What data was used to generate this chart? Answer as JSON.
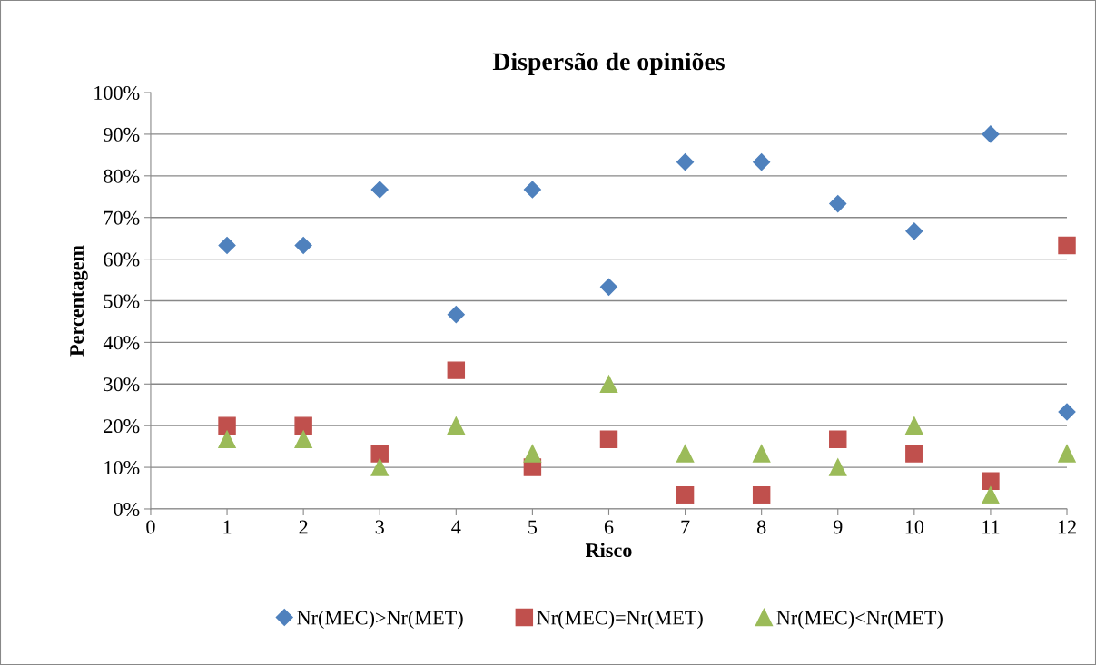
{
  "chart_data": {
    "type": "scatter",
    "title": "Dispersão de opiniões",
    "xlabel": "Risco",
    "ylabel": "Percentagem",
    "x": [
      1,
      2,
      3,
      4,
      5,
      6,
      7,
      8,
      9,
      10,
      11,
      12
    ],
    "series": [
      {
        "name": "Nr(MEC)>Nr(MET)",
        "color": "#4f81bd",
        "marker": "diamond",
        "values": [
          63.3,
          63.3,
          76.7,
          46.7,
          76.7,
          53.3,
          83.3,
          83.3,
          73.3,
          66.7,
          90,
          23.3
        ]
      },
      {
        "name": "Nr(MEC)=Nr(MET)",
        "color": "#c0504d",
        "marker": "square",
        "values": [
          20,
          20,
          13.3,
          33.3,
          10,
          16.7,
          3.3,
          3.3,
          16.7,
          13.3,
          6.7,
          63.3
        ]
      },
      {
        "name": "Nr(MEC)<Nr(MET)",
        "color": "#9bbb59",
        "marker": "triangle",
        "values": [
          16.7,
          16.7,
          10,
          20,
          13.3,
          30,
          13.3,
          13.3,
          10,
          20,
          3.3,
          13.3
        ]
      }
    ],
    "xlim": [
      0,
      12
    ],
    "xticks": [
      0,
      1,
      2,
      3,
      4,
      5,
      6,
      7,
      8,
      9,
      10,
      11,
      12
    ],
    "ylim": [
      0,
      100
    ],
    "yticks": [
      {
        "value": 0,
        "label": "0%"
      },
      {
        "value": 10,
        "label": "10%"
      },
      {
        "value": 20,
        "label": "20%"
      },
      {
        "value": 30,
        "label": "30%"
      },
      {
        "value": 40,
        "label": "40%"
      },
      {
        "value": 50,
        "label": "50%"
      },
      {
        "value": 60,
        "label": "60%"
      },
      {
        "value": 70,
        "label": "70%"
      },
      {
        "value": 80,
        "label": "80%"
      },
      {
        "value": 90,
        "label": "90%"
      },
      {
        "value": 100,
        "label": "100%"
      }
    ],
    "grid": "y",
    "legend": "bottom"
  }
}
